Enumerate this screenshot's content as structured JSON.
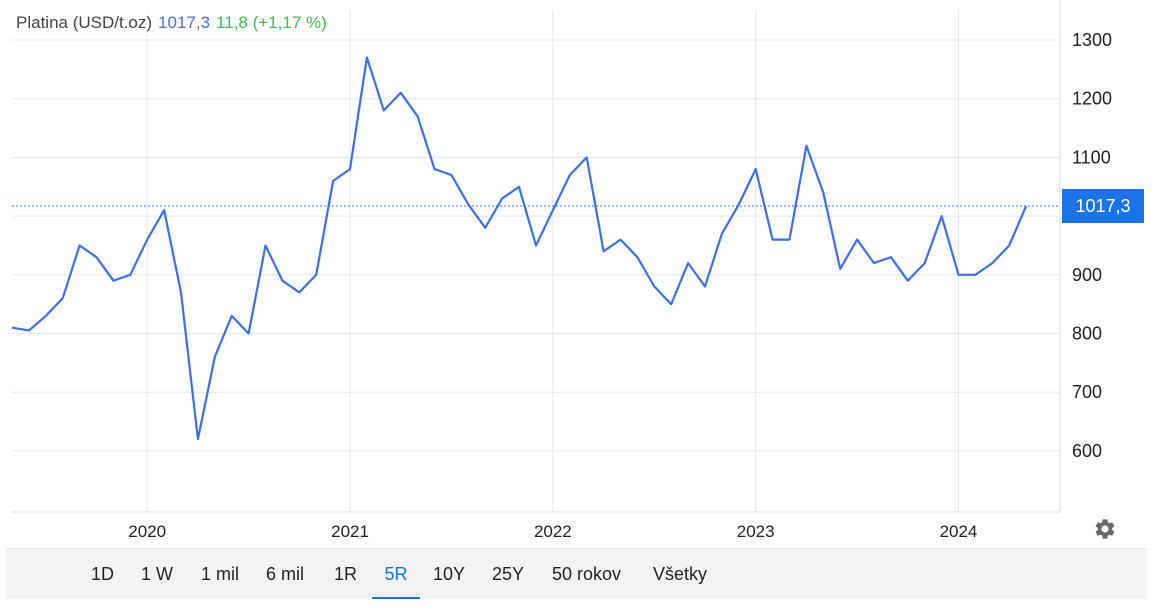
{
  "legend": {
    "name": "Platina (USD/t.oz)",
    "price": "1017,3",
    "change": "11,8 (+1,17 %)"
  },
  "price_tag": "1017,3",
  "colors": {
    "line": "#3a6ff0",
    "price_tag_bg": "#1a73e8",
    "change_positive": "#3dbd4a",
    "grid": "#e6e6e6"
  },
  "icons": {
    "settings": "gear-icon"
  },
  "range_buttons": [
    {
      "label": "1D",
      "active": false
    },
    {
      "label": "1 W",
      "active": false
    },
    {
      "label": "1 mil",
      "active": false
    },
    {
      "label": "6 mil",
      "active": false
    },
    {
      "label": "1R",
      "active": false
    },
    {
      "label": "5R",
      "active": true
    },
    {
      "label": "10Y",
      "active": false
    },
    {
      "label": "25Y",
      "active": false
    },
    {
      "label": "50 rokov",
      "active": false
    },
    {
      "label": "Všetky",
      "active": false
    }
  ],
  "chart_data": {
    "type": "line",
    "title": "Platina (USD/t.oz)",
    "x_tick_labels": [
      "2020",
      "2021",
      "2022",
      "2023",
      "2024"
    ],
    "y_tick_labels": [
      "600",
      "700",
      "800",
      "900",
      "1000",
      "1100",
      "1200",
      "1300"
    ],
    "ylim": [
      500,
      1350
    ],
    "xlim": [
      "2019-05",
      "2024-06"
    ],
    "current_value": 1017.3,
    "current_value_label": "1017,3",
    "grid": true,
    "series": [
      {
        "x": [
          "2019-05",
          "2019-06",
          "2019-07",
          "2019-08",
          "2019-09",
          "2019-10",
          "2019-11",
          "2019-12",
          "2020-01",
          "2020-02",
          "2020-03",
          "2020-04",
          "2020-05",
          "2020-06",
          "2020-07",
          "2020-08",
          "2020-09",
          "2020-10",
          "2020-11",
          "2020-12",
          "2021-01",
          "2021-02",
          "2021-03",
          "2021-04",
          "2021-05",
          "2021-06",
          "2021-07",
          "2021-08",
          "2021-09",
          "2021-10",
          "2021-11",
          "2021-12",
          "2022-01",
          "2022-02",
          "2022-03",
          "2022-04",
          "2022-05",
          "2022-06",
          "2022-07",
          "2022-08",
          "2022-09",
          "2022-10",
          "2022-11",
          "2022-12",
          "2023-01",
          "2023-02",
          "2023-03",
          "2023-04",
          "2023-05",
          "2023-06",
          "2023-07",
          "2023-08",
          "2023-09",
          "2023-10",
          "2023-11",
          "2023-12",
          "2024-01",
          "2024-02",
          "2024-03",
          "2024-04",
          "2024-05"
        ],
        "values": [
          810,
          805,
          830,
          860,
          950,
          930,
          890,
          900,
          960,
          1010,
          870,
          620,
          760,
          830,
          800,
          950,
          890,
          870,
          900,
          1060,
          1080,
          1270,
          1180,
          1210,
          1170,
          1080,
          1070,
          1020,
          980,
          1030,
          1050,
          950,
          1010,
          1070,
          1100,
          940,
          960,
          930,
          880,
          850,
          920,
          880,
          970,
          1020,
          1080,
          960,
          960,
          1120,
          1040,
          910,
          960,
          920,
          930,
          890,
          920,
          1000,
          900,
          900,
          920,
          950,
          1017
        ]
      }
    ]
  }
}
